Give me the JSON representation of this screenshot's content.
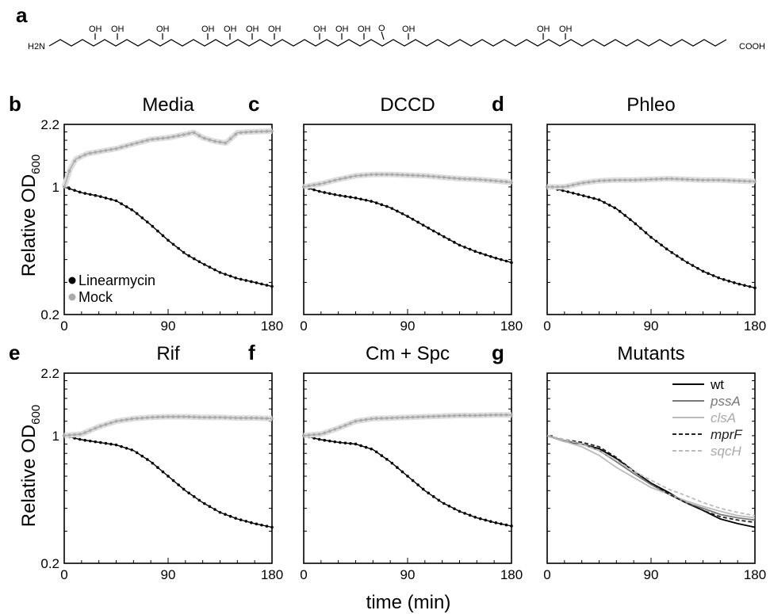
{
  "figure": {
    "xlabel": "time (min)",
    "ylabel_main": "Relative OD",
    "ylabel_sub": "600"
  },
  "structure": {
    "letter": "a",
    "nh2": "H2N",
    "cooh": "COOH",
    "oh": "OH",
    "ketone": "O"
  },
  "chart_data": [
    {
      "letter": "b",
      "title": "Media",
      "type": "line",
      "xlim": [
        0,
        180
      ],
      "ylim": [
        0.2,
        2.2
      ],
      "yscale": "log",
      "xticks": [
        "0",
        "90",
        "180"
      ],
      "yticks": [
        "0.2",
        "1",
        "2.2"
      ],
      "legend_position": "bottom-left",
      "series": [
        {
          "name": "Linearmycin",
          "color": "#000000",
          "x": [
            0,
            15,
            30,
            45,
            60,
            75,
            90,
            105,
            120,
            135,
            150,
            165,
            180
          ],
          "y": [
            1.0,
            0.93,
            0.89,
            0.84,
            0.74,
            0.62,
            0.51,
            0.43,
            0.38,
            0.34,
            0.315,
            0.3,
            0.285
          ]
        },
        {
          "name": "Mock",
          "color": "#aaaaaa",
          "x": [
            0,
            5,
            10,
            20,
            30,
            45,
            60,
            75,
            90,
            105,
            112,
            120,
            130,
            140,
            150,
            160,
            170,
            180
          ],
          "y": [
            1.0,
            1.25,
            1.42,
            1.52,
            1.56,
            1.62,
            1.72,
            1.82,
            1.86,
            1.94,
            1.99,
            1.86,
            1.78,
            1.74,
            1.98,
            2.0,
            2.01,
            2.02
          ]
        }
      ]
    },
    {
      "letter": "c",
      "title": "DCCD",
      "type": "line",
      "xlim": [
        0,
        180
      ],
      "ylim": [
        0.2,
        2.2
      ],
      "yscale": "log",
      "xticks": [
        "0",
        "90",
        "180"
      ],
      "yticks": [],
      "series": [
        {
          "color": "#000000",
          "x": [
            0,
            15,
            30,
            45,
            60,
            75,
            90,
            105,
            120,
            135,
            150,
            165,
            180
          ],
          "y": [
            1.0,
            0.94,
            0.9,
            0.87,
            0.83,
            0.77,
            0.69,
            0.61,
            0.54,
            0.48,
            0.44,
            0.41,
            0.385
          ]
        },
        {
          "color": "#aaaaaa",
          "x": [
            0,
            15,
            30,
            45,
            60,
            75,
            90,
            105,
            120,
            135,
            150,
            165,
            180
          ],
          "y": [
            1.0,
            1.04,
            1.1,
            1.15,
            1.17,
            1.17,
            1.16,
            1.15,
            1.13,
            1.11,
            1.1,
            1.08,
            1.06
          ]
        }
      ]
    },
    {
      "letter": "d",
      "title": "Phleo",
      "type": "line",
      "xlim": [
        0,
        180
      ],
      "ylim": [
        0.2,
        2.2
      ],
      "yscale": "log",
      "xticks": [
        "0",
        "90",
        "180"
      ],
      "yticks": [],
      "series": [
        {
          "color": "#000000",
          "x": [
            0,
            15,
            30,
            45,
            60,
            75,
            90,
            105,
            120,
            135,
            150,
            165,
            180
          ],
          "y": [
            1.0,
            0.95,
            0.9,
            0.85,
            0.76,
            0.64,
            0.53,
            0.45,
            0.39,
            0.345,
            0.315,
            0.295,
            0.28
          ]
        },
        {
          "color": "#aaaaaa",
          "x": [
            0,
            15,
            30,
            45,
            60,
            75,
            90,
            105,
            120,
            135,
            150,
            165,
            180
          ],
          "y": [
            1.0,
            1.0,
            1.05,
            1.08,
            1.09,
            1.09,
            1.1,
            1.11,
            1.1,
            1.09,
            1.09,
            1.08,
            1.07
          ]
        }
      ]
    },
    {
      "letter": "e",
      "title": "Rif",
      "type": "line",
      "xlim": [
        0,
        180
      ],
      "ylim": [
        0.2,
        2.2
      ],
      "yscale": "log",
      "xticks": [
        "0",
        "90",
        "180"
      ],
      "yticks": [
        "0.2",
        "1",
        "2.2"
      ],
      "series": [
        {
          "color": "#000000",
          "x": [
            0,
            15,
            30,
            45,
            60,
            75,
            90,
            105,
            120,
            135,
            150,
            165,
            180
          ],
          "y": [
            1.0,
            0.95,
            0.92,
            0.89,
            0.83,
            0.72,
            0.6,
            0.5,
            0.43,
            0.38,
            0.35,
            0.33,
            0.315
          ]
        },
        {
          "color": "#aaaaaa",
          "x": [
            0,
            15,
            30,
            45,
            60,
            75,
            90,
            105,
            120,
            135,
            150,
            165,
            180
          ],
          "y": [
            1.0,
            1.02,
            1.12,
            1.2,
            1.24,
            1.26,
            1.27,
            1.27,
            1.26,
            1.26,
            1.25,
            1.25,
            1.24
          ]
        }
      ]
    },
    {
      "letter": "f",
      "title": "Cm + Spc",
      "type": "line",
      "xlim": [
        0,
        180
      ],
      "ylim": [
        0.2,
        2.2
      ],
      "yscale": "log",
      "xticks": [
        "0",
        "90",
        "180"
      ],
      "yticks": [],
      "series": [
        {
          "color": "#000000",
          "x": [
            0,
            15,
            30,
            45,
            60,
            75,
            90,
            105,
            120,
            135,
            150,
            165,
            180
          ],
          "y": [
            1.0,
            0.95,
            0.92,
            0.9,
            0.84,
            0.72,
            0.6,
            0.5,
            0.43,
            0.385,
            0.355,
            0.335,
            0.32
          ]
        },
        {
          "color": "#aaaaaa",
          "x": [
            0,
            15,
            30,
            45,
            60,
            75,
            90,
            105,
            120,
            135,
            150,
            165,
            180
          ],
          "y": [
            1.0,
            1.02,
            1.1,
            1.2,
            1.24,
            1.25,
            1.26,
            1.27,
            1.28,
            1.29,
            1.29,
            1.3,
            1.3
          ]
        }
      ]
    },
    {
      "letter": "g",
      "title": "Mutants",
      "type": "line",
      "xlim": [
        0,
        180
      ],
      "ylim": [
        0.2,
        2.2
      ],
      "yscale": "log",
      "xticks": [
        "0",
        "90",
        "180"
      ],
      "yticks": [],
      "legend_position": "top-right",
      "series": [
        {
          "name": "wt",
          "color": "#000000",
          "dash": "solid",
          "x": [
            0,
            15,
            30,
            45,
            60,
            75,
            90,
            105,
            120,
            135,
            150,
            165,
            180
          ],
          "y": [
            1.0,
            0.93,
            0.9,
            0.85,
            0.75,
            0.64,
            0.55,
            0.49,
            0.43,
            0.39,
            0.35,
            0.33,
            0.315
          ]
        },
        {
          "name": "pssA",
          "color": "#777777",
          "dash": "solid",
          "x": [
            0,
            15,
            30,
            45,
            60,
            75,
            90,
            105,
            120,
            135,
            150,
            165,
            180
          ],
          "y": [
            1.0,
            0.94,
            0.9,
            0.83,
            0.72,
            0.62,
            0.54,
            0.48,
            0.43,
            0.4,
            0.37,
            0.355,
            0.345
          ]
        },
        {
          "name": "clsA",
          "color": "#bbbbbb",
          "dash": "solid",
          "x": [
            0,
            15,
            30,
            45,
            60,
            75,
            90,
            105,
            120,
            135,
            150,
            165,
            180
          ],
          "y": [
            1.0,
            0.93,
            0.87,
            0.78,
            0.67,
            0.59,
            0.52,
            0.48,
            0.44,
            0.41,
            0.385,
            0.365,
            0.355
          ]
        },
        {
          "name": "mprF",
          "color": "#222222",
          "dash": "dashed",
          "x": [
            0,
            15,
            30,
            45,
            60,
            75,
            90,
            105,
            120,
            135,
            150,
            165,
            180
          ],
          "y": [
            1.0,
            0.95,
            0.92,
            0.87,
            0.76,
            0.64,
            0.55,
            0.48,
            0.43,
            0.39,
            0.36,
            0.345,
            0.335
          ]
        },
        {
          "name": "sqcH",
          "color": "#bbbbbb",
          "dash": "dashed",
          "x": [
            0,
            15,
            30,
            45,
            60,
            75,
            90,
            105,
            120,
            135,
            150,
            165,
            180
          ],
          "y": [
            1.0,
            0.95,
            0.9,
            0.83,
            0.73,
            0.64,
            0.57,
            0.51,
            0.47,
            0.43,
            0.4,
            0.38,
            0.365
          ]
        }
      ]
    }
  ]
}
